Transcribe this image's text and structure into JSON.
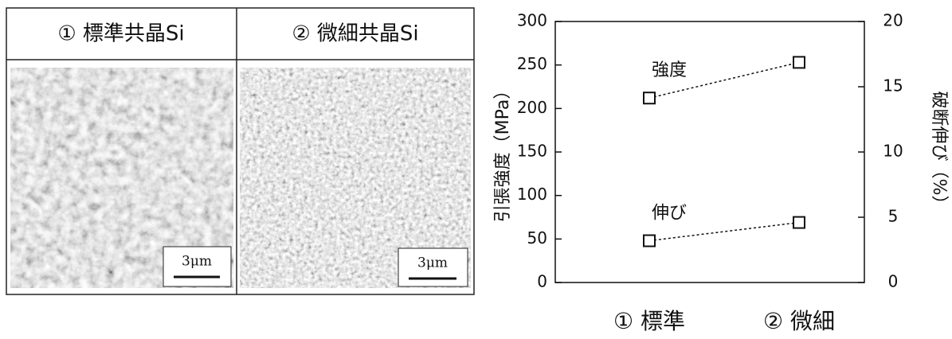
{
  "micrographs": [
    {
      "label": "① 標準共晶Si",
      "scale": "3μm"
    },
    {
      "label": "② 微細共晶Si",
      "scale": "3μm"
    }
  ],
  "chart_data": {
    "type": "line",
    "categories": [
      "① 標準",
      "② 微細"
    ],
    "ylabel": "引張強度（MPa）",
    "y2label": "破断伸び（%）",
    "ylim": [
      0,
      300
    ],
    "yticks": [
      0,
      50,
      100,
      150,
      200,
      250,
      300
    ],
    "y2lim": [
      0,
      20
    ],
    "y2ticks": [
      0,
      5,
      10,
      15,
      20
    ],
    "series": [
      {
        "name": "強度",
        "color": "#111111",
        "values": [
          212,
          253
        ]
      },
      {
        "name": "伸び",
        "color": "#111111",
        "values": [
          3.2,
          4.6
        ],
        "axis": "y2"
      }
    ]
  }
}
